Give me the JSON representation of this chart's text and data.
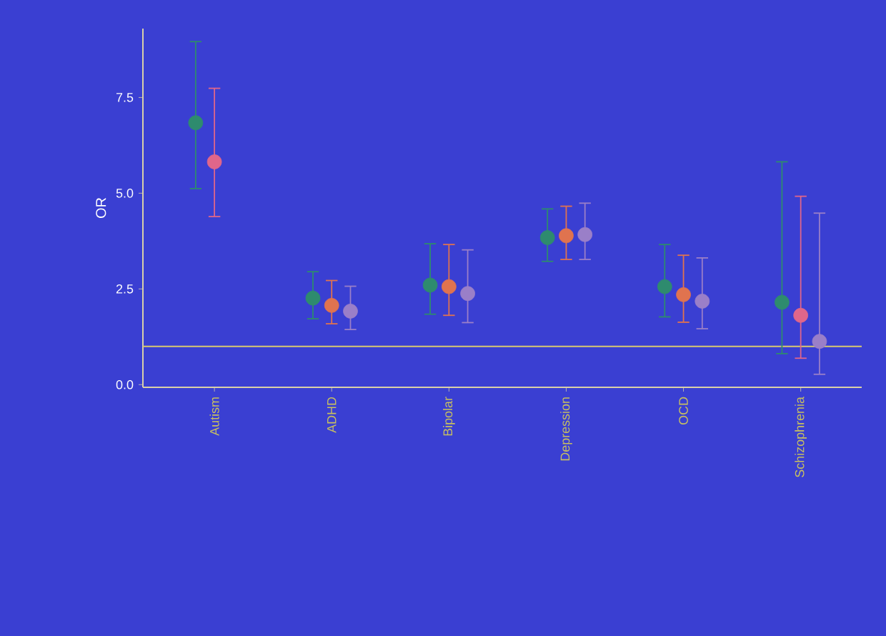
{
  "chart_data": {
    "type": "scatter",
    "ylabel": "OR",
    "categories": [
      "Autism",
      "ADHD",
      "Bipolar",
      "Depression",
      "OCD",
      "Schizophrenia"
    ],
    "series": [
      {
        "color": "#2e8b6e",
        "values": [
          6.84,
          2.26,
          2.6,
          3.84,
          2.56,
          2.15
        ],
        "errors": [
          [
            5.12,
            8.96
          ],
          [
            1.72,
            2.95
          ],
          [
            1.84,
            3.68
          ],
          [
            3.22,
            4.59
          ],
          [
            1.77,
            3.66
          ],
          [
            0.81,
            5.82
          ]
        ]
      },
      {
        "color": "#e0734f",
        "colors": [
          "#e0668a",
          "#e0734f",
          "#e0734f",
          "#e0734f",
          "#e0734f",
          "#e0668a"
        ],
        "values": [
          5.82,
          2.07,
          2.56,
          3.89,
          2.35,
          1.81
        ],
        "errors": [
          [
            4.39,
            7.74
          ],
          [
            1.59,
            2.72
          ],
          [
            1.81,
            3.66
          ],
          [
            3.27,
            4.66
          ],
          [
            1.63,
            3.38
          ],
          [
            0.69,
            4.92
          ]
        ]
      },
      {
        "color": "#9a7fc8",
        "values": [
          null,
          1.92,
          2.38,
          3.92,
          2.18,
          1.13
        ],
        "errors": [
          null,
          [
            1.44,
            2.57
          ],
          [
            1.62,
            3.52
          ],
          [
            3.27,
            4.74
          ],
          [
            1.46,
            3.31
          ],
          [
            0.27,
            4.48
          ]
        ]
      }
    ],
    "ylim": [
      -0.07,
      9.3
    ],
    "yticks": [
      {
        "value": 0,
        "label": "0.0"
      },
      {
        "value": 2.5,
        "label": "2.5"
      },
      {
        "value": 5,
        "label": "5.0"
      },
      {
        "value": 7.5,
        "label": "7.5"
      }
    ],
    "ref_lines": [
      {
        "axis": "y",
        "value": 1,
        "color": "#d8c870"
      }
    ],
    "marker": "circle",
    "grid": false
  }
}
